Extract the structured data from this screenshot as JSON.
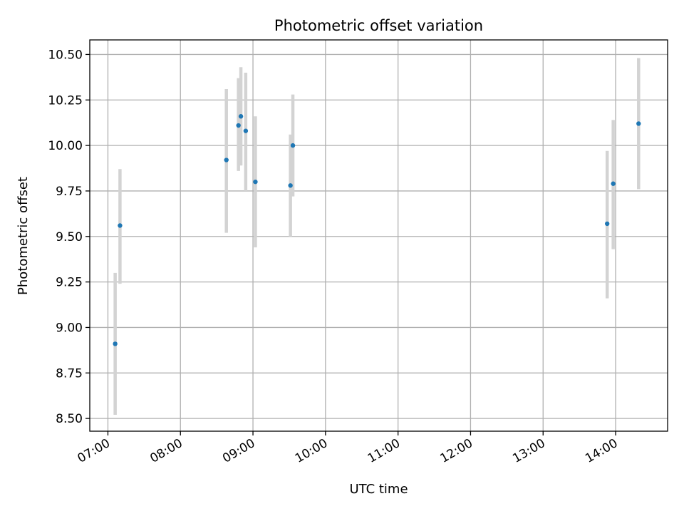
{
  "chart_data": {
    "type": "scatter",
    "title": "Photometric offset variation",
    "xlabel": "UTC time",
    "ylabel": "Photometric offset",
    "xlim": [
      "06:45",
      "14:43"
    ],
    "ylim": [
      8.43,
      10.58
    ],
    "x_ticks": [
      "07:00",
      "08:00",
      "09:00",
      "10:00",
      "11:00",
      "12:00",
      "13:00",
      "14:00"
    ],
    "y_ticks": [
      "8.50",
      "8.75",
      "9.00",
      "9.25",
      "9.50",
      "9.75",
      "10.00",
      "10.25",
      "10.50"
    ],
    "grid": true,
    "colors": {
      "points": "#1f77b4",
      "error_bars": "#d3d3d3",
      "grid": "#b0b0b0"
    },
    "points": [
      {
        "time": "07:06",
        "value": 8.91,
        "low": 8.52,
        "high": 9.3
      },
      {
        "time": "07:10",
        "value": 9.56,
        "low": 9.24,
        "high": 9.87
      },
      {
        "time": "08:38",
        "value": 9.92,
        "low": 9.52,
        "high": 10.31
      },
      {
        "time": "08:48",
        "value": 10.11,
        "low": 9.86,
        "high": 10.37
      },
      {
        "time": "08:50",
        "value": 10.16,
        "low": 9.89,
        "high": 10.43
      },
      {
        "time": "08:54",
        "value": 10.08,
        "low": 9.75,
        "high": 10.4
      },
      {
        "time": "09:02",
        "value": 9.8,
        "low": 9.44,
        "high": 10.16
      },
      {
        "time": "09:31",
        "value": 9.78,
        "low": 9.5,
        "high": 10.06
      },
      {
        "time": "09:33",
        "value": 10.0,
        "low": 9.72,
        "high": 10.28
      },
      {
        "time": "13:53",
        "value": 9.57,
        "low": 9.16,
        "high": 9.97
      },
      {
        "time": "13:58",
        "value": 9.79,
        "low": 9.43,
        "high": 10.14
      },
      {
        "time": "14:19",
        "value": 10.12,
        "low": 9.76,
        "high": 10.48
      }
    ]
  }
}
